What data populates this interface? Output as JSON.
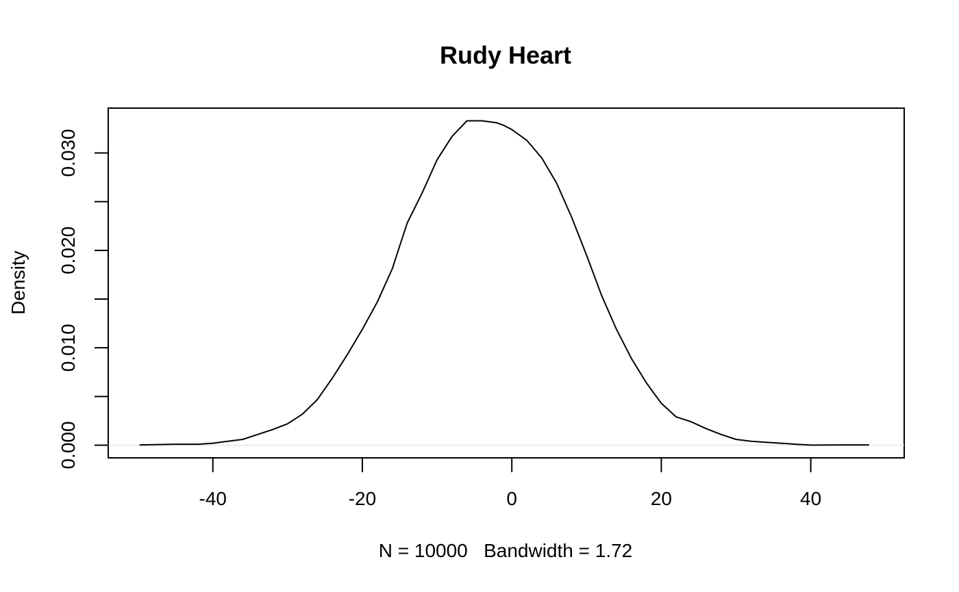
{
  "chart_data": {
    "type": "line",
    "title": "Rudy Heart",
    "xlabel": "N = 10000   Bandwidth = 1.72",
    "ylabel": "Density",
    "xlim": [
      -54,
      52.5
    ],
    "ylim": [
      -0.0013,
      0.0346
    ],
    "x_ticks": [
      -40,
      -20,
      0,
      20,
      40
    ],
    "x_tick_labels": [
      "-40",
      "-20",
      "0",
      "20",
      "40"
    ],
    "y_ticks": [
      0,
      0.005,
      0.01,
      0.015,
      0.02,
      0.025,
      0.03
    ],
    "y_tick_labels": [
      "0.000",
      "",
      "0.010",
      "",
      "0.020",
      "",
      "0.030"
    ],
    "grid": false,
    "zero_line": true,
    "series": [
      {
        "x": [
          -49.8,
          -45,
          -42,
          -40,
          -38,
          -36,
          -34,
          -32,
          -30,
          -28,
          -26,
          -24,
          -22,
          -20,
          -18,
          -16,
          -14,
          -12,
          -10,
          -8,
          -6,
          -4,
          -2,
          -1,
          0,
          2,
          4,
          6,
          8,
          10,
          12,
          14,
          16,
          18,
          20,
          22,
          24,
          26,
          28,
          30,
          32,
          34,
          36,
          38,
          40,
          44,
          47.8
        ],
        "y": [
          3e-05,
          0.0001,
          0.0001,
          0.0002,
          0.0004,
          0.0006,
          0.0011,
          0.0016,
          0.0022,
          0.0032,
          0.0047,
          0.0069,
          0.0093,
          0.0119,
          0.0147,
          0.0181,
          0.0228,
          0.0259,
          0.0293,
          0.0317,
          0.0333,
          0.0333,
          0.0331,
          0.0328,
          0.0324,
          0.0313,
          0.0295,
          0.0269,
          0.0234,
          0.0195,
          0.0154,
          0.0119,
          0.0089,
          0.0064,
          0.0043,
          0.0029,
          0.0024,
          0.0017,
          0.0011,
          0.0006,
          0.0004,
          0.0003,
          0.0002,
          0.0001,
          1e-05,
          3e-05,
          3e-05
        ]
      }
    ]
  }
}
